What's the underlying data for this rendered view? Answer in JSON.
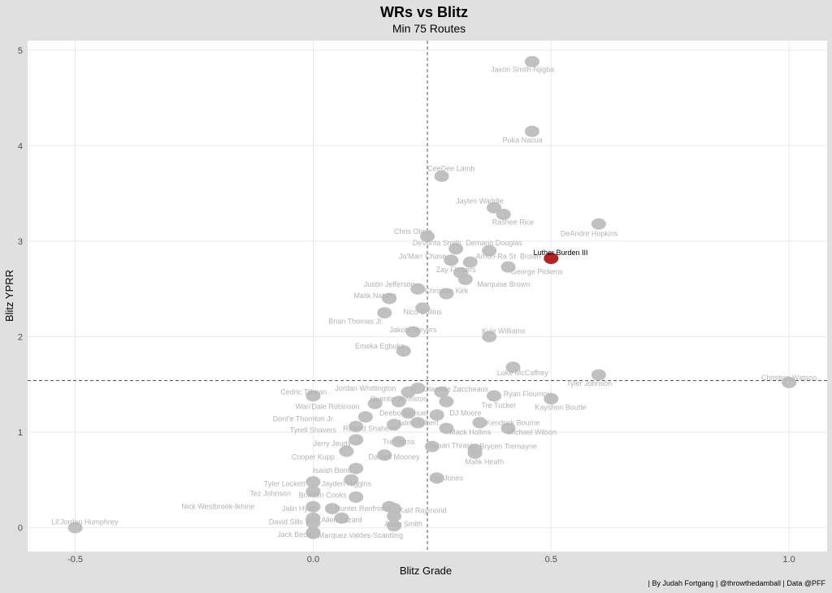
{
  "chart_data": {
    "type": "scatter",
    "title": "WRs vs Blitz",
    "subtitle": "Min 75 Routes",
    "xlabel": "Blitz Grade",
    "ylabel": "Blitz YPRR",
    "caption": "| By Judah Fortgang | @throwthedamball | Data @PFF",
    "xlim": [
      -0.6,
      1.08
    ],
    "ylim": [
      -0.25,
      5.1
    ],
    "x_ticks": [
      -0.5,
      0.0,
      0.5,
      1.0
    ],
    "x_tick_labels": [
      "-0.5",
      "0.0",
      "0.5",
      "1.0"
    ],
    "y_ticks": [
      0,
      1,
      2,
      3,
      4,
      5
    ],
    "y_tick_labels": [
      "0",
      "1",
      "2",
      "3",
      "4",
      "5"
    ],
    "grid": true,
    "reference_lines": {
      "x": 0.24,
      "y": 1.54
    },
    "highlight_color": "#b22222",
    "mark_color": "#bdbdbd",
    "points": [
      {
        "name": "Jaxon Smith-Njigba",
        "x": 0.46,
        "y": 4.88
      },
      {
        "name": "Puka Nacua",
        "x": 0.46,
        "y": 4.15
      },
      {
        "name": "CeeDee Lamb",
        "x": 0.27,
        "y": 3.68
      },
      {
        "name": "Jaylen Waddle",
        "x": 0.38,
        "y": 3.35
      },
      {
        "name": "Rashee Rice",
        "x": 0.4,
        "y": 3.28
      },
      {
        "name": "DeAndre Hopkins",
        "x": 0.6,
        "y": 3.18
      },
      {
        "name": "Chris Olave",
        "x": 0.24,
        "y": 3.05
      },
      {
        "name": "DeVonta Smith",
        "x": 0.3,
        "y": 2.92
      },
      {
        "name": "Demario Douglas",
        "x": 0.37,
        "y": 2.9
      },
      {
        "name": "Ja'Marr Chase",
        "x": 0.29,
        "y": 2.8
      },
      {
        "name": "Amon-Ra St. Brown",
        "x": 0.33,
        "y": 2.78
      },
      {
        "name": "Luther Burden III",
        "x": 0.5,
        "y": 2.82,
        "highlight": true
      },
      {
        "name": "George Pickens",
        "x": 0.41,
        "y": 2.73
      },
      {
        "name": "Zay Flowers",
        "x": 0.31,
        "y": 2.67
      },
      {
        "name": "Marquise Brown",
        "x": 0.32,
        "y": 2.6
      },
      {
        "name": "Justin Jefferson",
        "x": 0.22,
        "y": 2.5
      },
      {
        "name": "Christian Kirk",
        "x": 0.28,
        "y": 2.45
      },
      {
        "name": "Malik Nabers",
        "x": 0.16,
        "y": 2.4
      },
      {
        "name": "Nico Collins",
        "x": 0.23,
        "y": 2.3
      },
      {
        "name": "Brian Thomas Jr.",
        "x": 0.15,
        "y": 2.25
      },
      {
        "name": "Jakobi Meyers",
        "x": 0.21,
        "y": 2.05
      },
      {
        "name": "Kyle Williams",
        "x": 0.37,
        "y": 2.0
      },
      {
        "name": "Emeka Egbuka",
        "x": 0.19,
        "y": 1.85
      },
      {
        "name": "Luke McCaffrey",
        "x": 0.42,
        "y": 1.68
      },
      {
        "name": "Tyler Johnson",
        "x": 0.6,
        "y": 1.6
      },
      {
        "name": "Christian Watson",
        "x": 1.0,
        "y": 1.52
      },
      {
        "name": "Cedric Tillman",
        "x": 0.0,
        "y": 1.38
      },
      {
        "name": "Jordan Whittington",
        "x": 0.2,
        "y": 1.42
      },
      {
        "name": "Jalen Coker",
        "x": 0.22,
        "y": 1.46
      },
      {
        "name": "Olamide Zaccheaus",
        "x": 0.27,
        "y": 1.42
      },
      {
        "name": "Ryan Flournoy",
        "x": 0.38,
        "y": 1.38
      },
      {
        "name": "Wan'Dale Robinson",
        "x": 0.13,
        "y": 1.3
      },
      {
        "name": "Quentin Johnston",
        "x": 0.18,
        "y": 1.32
      },
      {
        "name": "Tre Tucker",
        "x": 0.28,
        "y": 1.32
      },
      {
        "name": "Kayshon Boutte",
        "x": 0.5,
        "y": 1.35
      },
      {
        "name": "Dont'e Thornton Jr.",
        "x": 0.11,
        "y": 1.16
      },
      {
        "name": "Deebo Samuel",
        "x": 0.2,
        "y": 1.2
      },
      {
        "name": "DJ Moore",
        "x": 0.26,
        "y": 1.18
      },
      {
        "name": "Kendrick Bourne",
        "x": 0.35,
        "y": 1.1
      },
      {
        "name": "Tyrell Shavers",
        "x": 0.09,
        "y": 1.06
      },
      {
        "name": "Rashid Shaheed",
        "x": 0.17,
        "y": 1.08
      },
      {
        "name": "Jalen Tolbert",
        "x": 0.22,
        "y": 1.1
      },
      {
        "name": "Mack Hollins",
        "x": 0.28,
        "y": 1.04
      },
      {
        "name": "Michael Wilson",
        "x": 0.41,
        "y": 1.04
      },
      {
        "name": "Jerry Jeudy",
        "x": 0.09,
        "y": 0.92
      },
      {
        "name": "Tre Harris",
        "x": 0.18,
        "y": 0.9
      },
      {
        "name": "Jamari Thrash",
        "x": 0.25,
        "y": 0.85
      },
      {
        "name": "Brycen Tremayne",
        "x": 0.34,
        "y": 0.82
      },
      {
        "name": "Cooper Kupp",
        "x": 0.07,
        "y": 0.8
      },
      {
        "name": "Darnell Mooney",
        "x": 0.15,
        "y": 0.76
      },
      {
        "name": "Malik Heath",
        "x": 0.34,
        "y": 0.78
      },
      {
        "name": "Isaiah Bond",
        "x": 0.09,
        "y": 0.62
      },
      {
        "name": "Zay Jones",
        "x": 0.26,
        "y": 0.52
      },
      {
        "name": "Tyler Lockett",
        "x": 0.0,
        "y": 0.48
      },
      {
        "name": "Jayden Higgins",
        "x": 0.08,
        "y": 0.5
      },
      {
        "name": "Tez Johnson",
        "x": 0.0,
        "y": 0.38
      },
      {
        "name": "Brandin Cooks",
        "x": 0.09,
        "y": 0.32
      },
      {
        "name": "Nick Westbrook-Ikhine",
        "x": 0.0,
        "y": 0.22
      },
      {
        "name": "Jalin Hyatt",
        "x": 0.04,
        "y": 0.2
      },
      {
        "name": "Hunter Renfrow",
        "x": 0.16,
        "y": 0.22
      },
      {
        "name": "Xavier Legette",
        "x": 0.17,
        "y": 0.2
      },
      {
        "name": "Ashton Dulin",
        "x": 0.06,
        "y": 0.1
      },
      {
        "name": "David Sills V",
        "x": 0.0,
        "y": 0.1
      },
      {
        "name": "Allen Lazard",
        "x": 0.0,
        "y": 0.05
      },
      {
        "name": "Lil'Jordan Humphrey",
        "x": -0.5,
        "y": 0.0
      },
      {
        "name": "Kalif Raymond",
        "x": 0.17,
        "y": 0.12
      },
      {
        "name": "Anan Smith",
        "x": 0.17,
        "y": 0.02
      },
      {
        "name": "Jack Bech",
        "x": 0.0,
        "y": -0.05
      },
      {
        "name": "Marquez Valdes-Scantling",
        "x": 0.0,
        "y": -0.06
      }
    ],
    "labels": [
      {
        "text": "Jaxon Smith-Njigba",
        "x": 0.44,
        "y": 4.8
      },
      {
        "text": "Puka Nacua",
        "x": 0.44,
        "y": 4.06
      },
      {
        "text": "CeeDee Lamb",
        "x": 0.29,
        "y": 3.76
      },
      {
        "text": "Jaylen Waddle",
        "x": 0.35,
        "y": 3.42
      },
      {
        "text": "Rashee Rice",
        "x": 0.42,
        "y": 3.2
      },
      {
        "text": "DeAndre Hopkins",
        "x": 0.58,
        "y": 3.08
      },
      {
        "text": "Chris Olave",
        "x": 0.21,
        "y": 3.1
      },
      {
        "text": "DeVonta Smith",
        "x": 0.26,
        "y": 2.98
      },
      {
        "text": "Demario Douglas",
        "x": 0.38,
        "y": 2.98
      },
      {
        "text": "Ja'Marr Chase",
        "x": 0.23,
        "y": 2.84
      },
      {
        "text": "Amon-Ra St. Brown",
        "x": 0.41,
        "y": 2.84
      },
      {
        "text": "Luther Burden III",
        "x": 0.52,
        "y": 2.88,
        "highlight": true
      },
      {
        "text": "George Pickens",
        "x": 0.47,
        "y": 2.68
      },
      {
        "text": "Zay Flowers",
        "x": 0.3,
        "y": 2.7
      },
      {
        "text": "Marquise Brown",
        "x": 0.4,
        "y": 2.55
      },
      {
        "text": "Justin Jefferson",
        "x": 0.16,
        "y": 2.55
      },
      {
        "text": "Christian Kirk",
        "x": 0.28,
        "y": 2.48
      },
      {
        "text": "Malik Nabers",
        "x": 0.13,
        "y": 2.43
      },
      {
        "text": "Nico Collins",
        "x": 0.23,
        "y": 2.26
      },
      {
        "text": "Brian Thomas Jr.",
        "x": 0.09,
        "y": 2.16
      },
      {
        "text": "Jakobi Meyers",
        "x": 0.21,
        "y": 2.07
      },
      {
        "text": "Kyle Williams",
        "x": 0.4,
        "y": 2.06
      },
      {
        "text": "Emeka Egbuka",
        "x": 0.14,
        "y": 1.9
      },
      {
        "text": "Luke McCaffrey",
        "x": 0.44,
        "y": 1.62
      },
      {
        "text": "Tyler Johnson",
        "x": 0.58,
        "y": 1.51
      },
      {
        "text": "Christian Watson",
        "x": 1.0,
        "y": 1.57
      },
      {
        "text": "Cedric Tillman",
        "x": -0.02,
        "y": 1.42
      },
      {
        "text": "Jordan Whittington",
        "x": 0.11,
        "y": 1.46
      },
      {
        "text": "Olamide Zaccheaus",
        "x": 0.3,
        "y": 1.45
      },
      {
        "text": "Ryan Flournoy",
        "x": 0.45,
        "y": 1.4
      },
      {
        "text": "Quentin Johnston",
        "x": 0.18,
        "y": 1.35
      },
      {
        "text": "Wan'Dale Robinson",
        "x": 0.03,
        "y": 1.27
      },
      {
        "text": "Tre Tucker",
        "x": 0.39,
        "y": 1.28
      },
      {
        "text": "Kayshon Boutte",
        "x": 0.52,
        "y": 1.26
      },
      {
        "text": "Dont'e Thornton Jr.",
        "x": -0.02,
        "y": 1.14
      },
      {
        "text": "Deebo Samuel",
        "x": 0.19,
        "y": 1.2
      },
      {
        "text": "DJ Moore",
        "x": 0.32,
        "y": 1.2
      },
      {
        "text": "Kendrick Bourne",
        "x": 0.42,
        "y": 1.1
      },
      {
        "text": "Tyrell Shavers",
        "x": 0.0,
        "y": 1.02
      },
      {
        "text": "Rashid Shaheed",
        "x": 0.12,
        "y": 1.04
      },
      {
        "text": "Jalen Tolbert",
        "x": 0.22,
        "y": 1.1
      },
      {
        "text": "Mack Hollins",
        "x": 0.33,
        "y": 1.0
      },
      {
        "text": "Michael Wilson",
        "x": 0.46,
        "y": 1.0
      },
      {
        "text": "Jerry Jeudy",
        "x": 0.04,
        "y": 0.88
      },
      {
        "text": "Tre Harris",
        "x": 0.18,
        "y": 0.9
      },
      {
        "text": "Jamari Thrash",
        "x": 0.29,
        "y": 0.86
      },
      {
        "text": "Brycen Tremayne",
        "x": 0.41,
        "y": 0.85
      },
      {
        "text": "Cooper Kupp",
        "x": 0.0,
        "y": 0.74
      },
      {
        "text": "Darnell Mooney",
        "x": 0.17,
        "y": 0.74
      },
      {
        "text": "Malik Heath",
        "x": 0.36,
        "y": 0.69
      },
      {
        "text": "Isaiah Bond",
        "x": 0.04,
        "y": 0.6
      },
      {
        "text": "Zay Jones",
        "x": 0.28,
        "y": 0.52
      },
      {
        "text": "Tyler Lockett",
        "x": -0.06,
        "y": 0.46
      },
      {
        "text": "Jayden Higgins",
        "x": 0.07,
        "y": 0.46
      },
      {
        "text": "Tez Johnson",
        "x": -0.09,
        "y": 0.36
      },
      {
        "text": "Brandin Cooks",
        "x": 0.02,
        "y": 0.34
      },
      {
        "text": "Nick Westbrook-Ikhine",
        "x": -0.2,
        "y": 0.22
      },
      {
        "text": "Jalin Hyatt",
        "x": -0.03,
        "y": 0.2
      },
      {
        "text": "Hunter Renfrow",
        "x": 0.1,
        "y": 0.2
      },
      {
        "text": "Kalif Raymond",
        "x": 0.23,
        "y": 0.18
      },
      {
        "text": "David Sills V",
        "x": -0.05,
        "y": 0.06
      },
      {
        "text": "Allen Lazard",
        "x": 0.06,
        "y": 0.08
      },
      {
        "text": "Anan Smith",
        "x": 0.19,
        "y": 0.04
      },
      {
        "text": "Lil'Jordan Humphrey",
        "x": -0.48,
        "y": 0.06
      },
      {
        "text": "Jack Bech",
        "x": -0.04,
        "y": -0.07
      },
      {
        "text": "Marquez Valdes-Scantling",
        "x": 0.1,
        "y": -0.08
      }
    ]
  }
}
